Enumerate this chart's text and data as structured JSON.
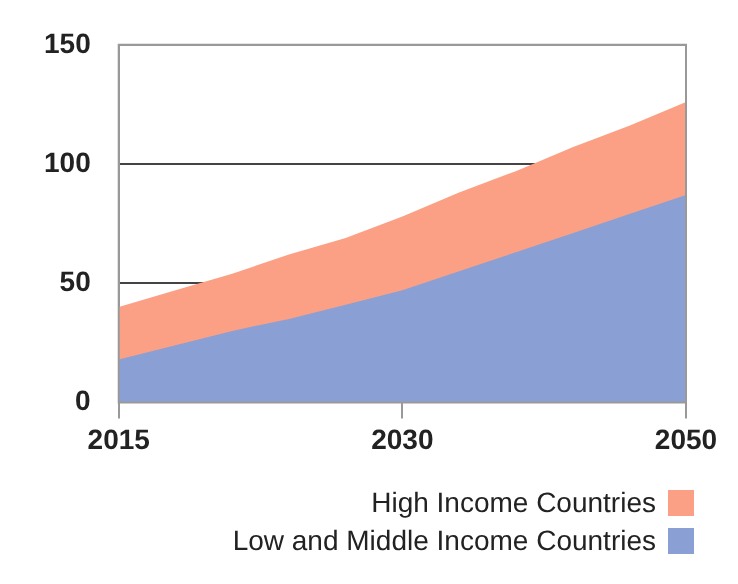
{
  "chart_data": {
    "type": "area",
    "categories": [
      "2015",
      null,
      null,
      null,
      null,
      "2030",
      null,
      null,
      null,
      null,
      "2050"
    ],
    "series": [
      {
        "name": "High Income Countries",
        "color": "#fca085",
        "values": [
          40,
          47,
          54,
          62,
          69,
          78,
          88,
          97,
          107,
          116,
          126
        ]
      },
      {
        "name": "Low and Middle Income Countries",
        "color": "#8aa0d4",
        "values": [
          18,
          24,
          30,
          35,
          41,
          47,
          55,
          63,
          71,
          79,
          87
        ]
      }
    ],
    "ylim": [
      0,
      150
    ],
    "yticks": [
      0,
      50,
      100,
      150
    ],
    "grid": "y",
    "legend": "bottom right"
  }
}
